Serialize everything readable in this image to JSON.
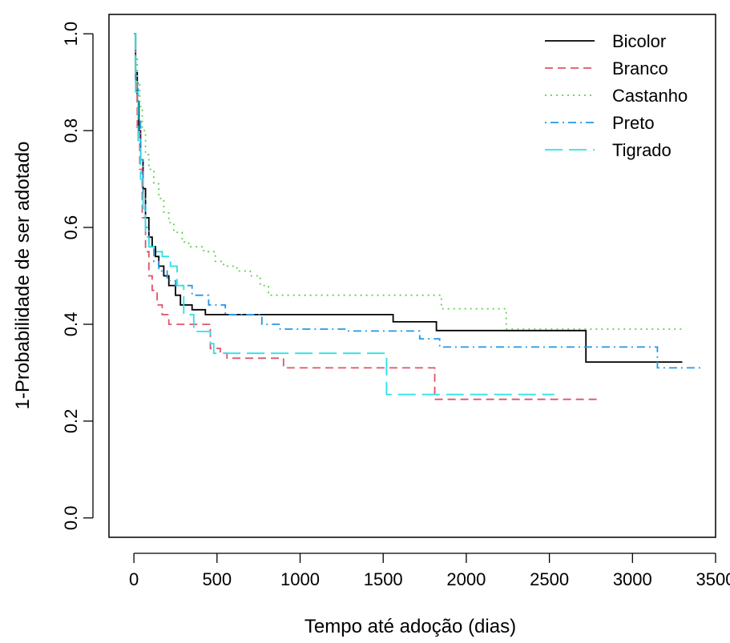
{
  "chart_data": {
    "type": "line",
    "step": true,
    "title": "",
    "xlabel": "Tempo até adoção (dias)",
    "ylabel": "1-Probabilidade de ser adotado",
    "xlim": [
      -150,
      3500
    ],
    "ylim": [
      -0.04,
      1.04
    ],
    "xticks": [
      0,
      500,
      1000,
      1500,
      2000,
      2500,
      3000,
      3500
    ],
    "yticks": [
      0.0,
      0.2,
      0.4,
      0.6,
      0.8,
      1.0
    ],
    "xtick_labels": [
      "0",
      "500",
      "1000",
      "1500",
      "2000",
      "2500",
      "3000",
      "3500"
    ],
    "ytick_labels": [
      "0.0",
      "0.2",
      "0.4",
      "0.6",
      "0.8",
      "1.0"
    ],
    "grid": false,
    "legend_position": "top-right",
    "series": [
      {
        "name": "Bicolor",
        "color": "#000000",
        "dash": "solid",
        "x": [
          0,
          10,
          20,
          30,
          40,
          55,
          70,
          90,
          110,
          130,
          150,
          180,
          210,
          250,
          280,
          320,
          350,
          430,
          470,
          1560,
          1820,
          2720,
          3300
        ],
        "y": [
          1.0,
          0.92,
          0.86,
          0.8,
          0.74,
          0.68,
          0.62,
          0.58,
          0.56,
          0.54,
          0.52,
          0.5,
          0.48,
          0.46,
          0.44,
          0.44,
          0.43,
          0.42,
          0.42,
          0.405,
          0.387,
          0.322,
          0.322
        ]
      },
      {
        "name": "Branco",
        "color": "#DF536B",
        "dash": "dashed",
        "x": [
          0,
          10,
          20,
          35,
          50,
          70,
          90,
          110,
          140,
          170,
          210,
          250,
          330,
          460,
          520,
          560,
          900,
          1810,
          2800
        ],
        "y": [
          1.0,
          0.9,
          0.8,
          0.72,
          0.62,
          0.55,
          0.5,
          0.47,
          0.44,
          0.42,
          0.4,
          0.4,
          0.4,
          0.35,
          0.34,
          0.33,
          0.31,
          0.245,
          0.245
        ]
      },
      {
        "name": "Castanho",
        "color": "#61D04F",
        "dash": "dotted",
        "x": [
          0,
          10,
          20,
          35,
          50,
          70,
          90,
          120,
          150,
          180,
          210,
          240,
          290,
          330,
          420,
          490,
          540,
          620,
          700,
          760,
          810,
          1850,
          2240,
          3300
        ],
        "y": [
          1.0,
          0.95,
          0.9,
          0.85,
          0.8,
          0.75,
          0.72,
          0.69,
          0.66,
          0.63,
          0.61,
          0.59,
          0.57,
          0.56,
          0.55,
          0.53,
          0.52,
          0.51,
          0.5,
          0.48,
          0.46,
          0.432,
          0.39,
          0.39
        ]
      },
      {
        "name": "Preto",
        "color": "#2297E6",
        "dash": "dotdash",
        "x": [
          0,
          10,
          25,
          40,
          55,
          70,
          90,
          120,
          150,
          200,
          250,
          350,
          450,
          550,
          770,
          880,
          1280,
          1720,
          1840,
          3150,
          3420
        ],
        "y": [
          1.0,
          0.9,
          0.82,
          0.74,
          0.66,
          0.6,
          0.56,
          0.53,
          0.51,
          0.49,
          0.48,
          0.46,
          0.44,
          0.42,
          0.4,
          0.39,
          0.386,
          0.37,
          0.353,
          0.31,
          0.31
        ]
      },
      {
        "name": "Tigrado",
        "color": "#28E2E5",
        "dash": "longdash",
        "x": [
          0,
          10,
          25,
          40,
          55,
          70,
          90,
          130,
          170,
          220,
          260,
          300,
          360,
          460,
          480,
          1520,
          2530
        ],
        "y": [
          1.0,
          0.88,
          0.78,
          0.7,
          0.64,
          0.58,
          0.56,
          0.55,
          0.54,
          0.52,
          0.48,
          0.42,
          0.385,
          0.36,
          0.34,
          0.255,
          0.255
        ]
      }
    ]
  }
}
